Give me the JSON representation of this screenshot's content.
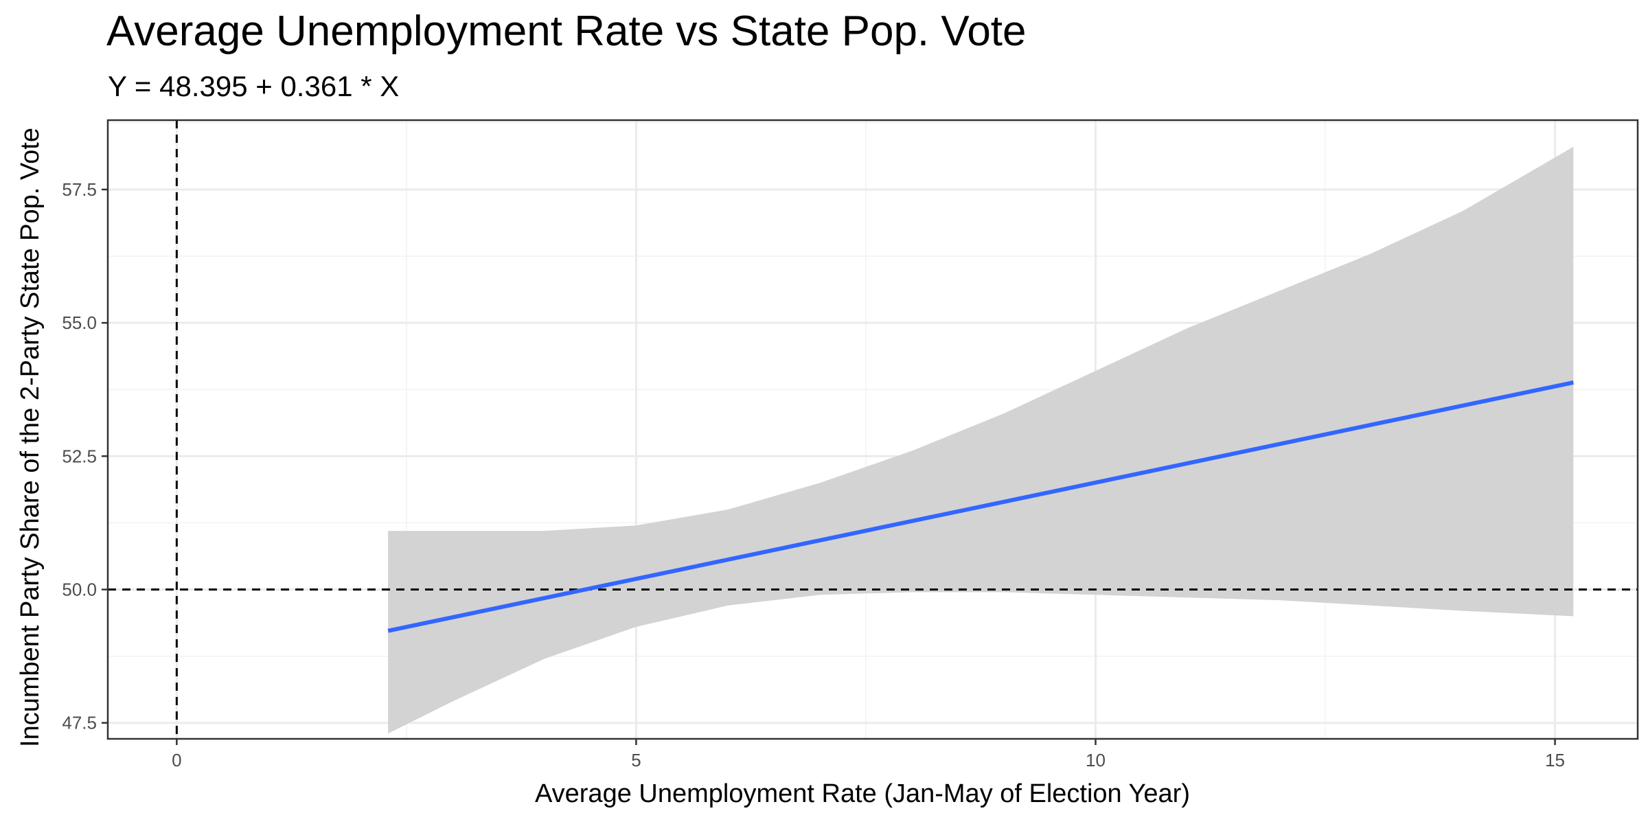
{
  "chart_data": {
    "type": "line",
    "title": "Average Unemployment Rate vs State Pop. Vote",
    "subtitle": "Y = 48.395 + 0.361 * X",
    "xlabel": "Average Unemployment Rate (Jan-May of Election Year)",
    "ylabel": "Incumbent Party Share of the 2-Party State Pop. Vote",
    "xlim": [
      -0.75,
      15.9
    ],
    "ylim": [
      47.2,
      58.8
    ],
    "x_ticks": [
      0,
      5,
      10,
      15
    ],
    "x_tick_labels": [
      "0",
      "5",
      "10",
      "15"
    ],
    "y_ticks": [
      47.5,
      50.0,
      52.5,
      55.0,
      57.5
    ],
    "y_tick_labels": [
      "47.5",
      "50.0",
      "52.5",
      "55.0",
      "57.5"
    ],
    "grid": true,
    "fit_line": {
      "intercept": 48.395,
      "slope": 0.361,
      "x": [
        2.3,
        15.2
      ],
      "color": "#3366FF"
    },
    "confidence_band": {
      "color": "#D3D3D3",
      "x": [
        2.3,
        3.0,
        4.0,
        5.0,
        6.0,
        7.0,
        8.0,
        9.0,
        10.0,
        11.0,
        12.0,
        13.0,
        14.0,
        15.2
      ],
      "lower": [
        47.3,
        47.9,
        48.7,
        49.3,
        49.7,
        49.9,
        49.95,
        49.95,
        49.9,
        49.85,
        49.8,
        49.7,
        49.6,
        49.5
      ],
      "upper": [
        51.1,
        51.1,
        51.1,
        51.2,
        51.5,
        52.0,
        52.6,
        53.3,
        54.1,
        54.9,
        55.6,
        56.3,
        57.1,
        58.3
      ]
    },
    "reference_lines": {
      "vertical_x": 0,
      "horizontal_y": 50,
      "style": "dashed",
      "color": "#000000"
    }
  }
}
